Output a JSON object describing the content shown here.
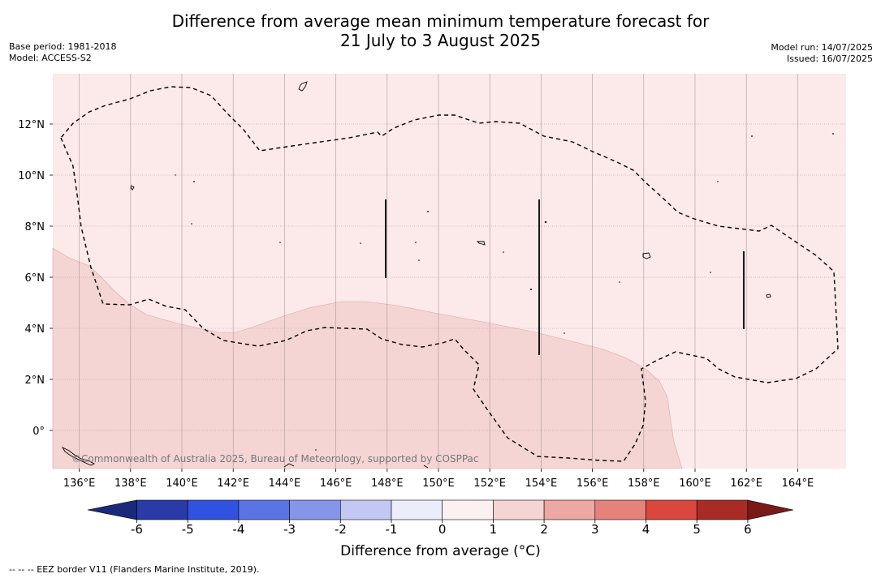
{
  "header": {
    "title_line1": "Difference from average mean minimum temperature forecast for",
    "title_line2": "21 July to 3 August 2025",
    "base_period": "Base period: 1981-2018",
    "model": "Model: ACCESS-S2",
    "model_run": "Model run: 14/07/2025",
    "issued": "Issued: 16/07/2025"
  },
  "map": {
    "lon_labels": [
      "136°E",
      "138°E",
      "140°E",
      "142°E",
      "144°E",
      "146°E",
      "148°E",
      "150°E",
      "152°E",
      "154°E",
      "156°E",
      "158°E",
      "160°E",
      "162°E",
      "164°E"
    ],
    "lat_labels": [
      "12°N",
      "10°N",
      "8°N",
      "6°N",
      "4°N",
      "2°N",
      "0°"
    ],
    "copyright": "©Commonwealth of Australia 2025, Bureau of Meteorology, supported by COSPPac",
    "fill_colors": {
      "range_0_1": "#fce9e9",
      "range_1_2": "#f5d4d4"
    }
  },
  "colorbar": {
    "labels": [
      "-6",
      "-5",
      "-4",
      "-3",
      "-2",
      "-1",
      "0",
      "1",
      "2",
      "3",
      "4",
      "5",
      "6"
    ],
    "colors": [
      "#2a3aa8",
      "#2f52e0",
      "#5a74e3",
      "#8595ea",
      "#c2c8f3",
      "#ebedfb",
      "#fdf0f0",
      "#f5d4d4",
      "#eda8a3",
      "#e5827b",
      "#d9473d",
      "#a92b25"
    ],
    "low_extend_color": "#1a2a78",
    "high_extend_color": "#7a1a18",
    "title": "Difference from average (°C)"
  },
  "footnote": "--  --  -- EEZ border V11 (Flanders Marine Institute, 2019)."
}
